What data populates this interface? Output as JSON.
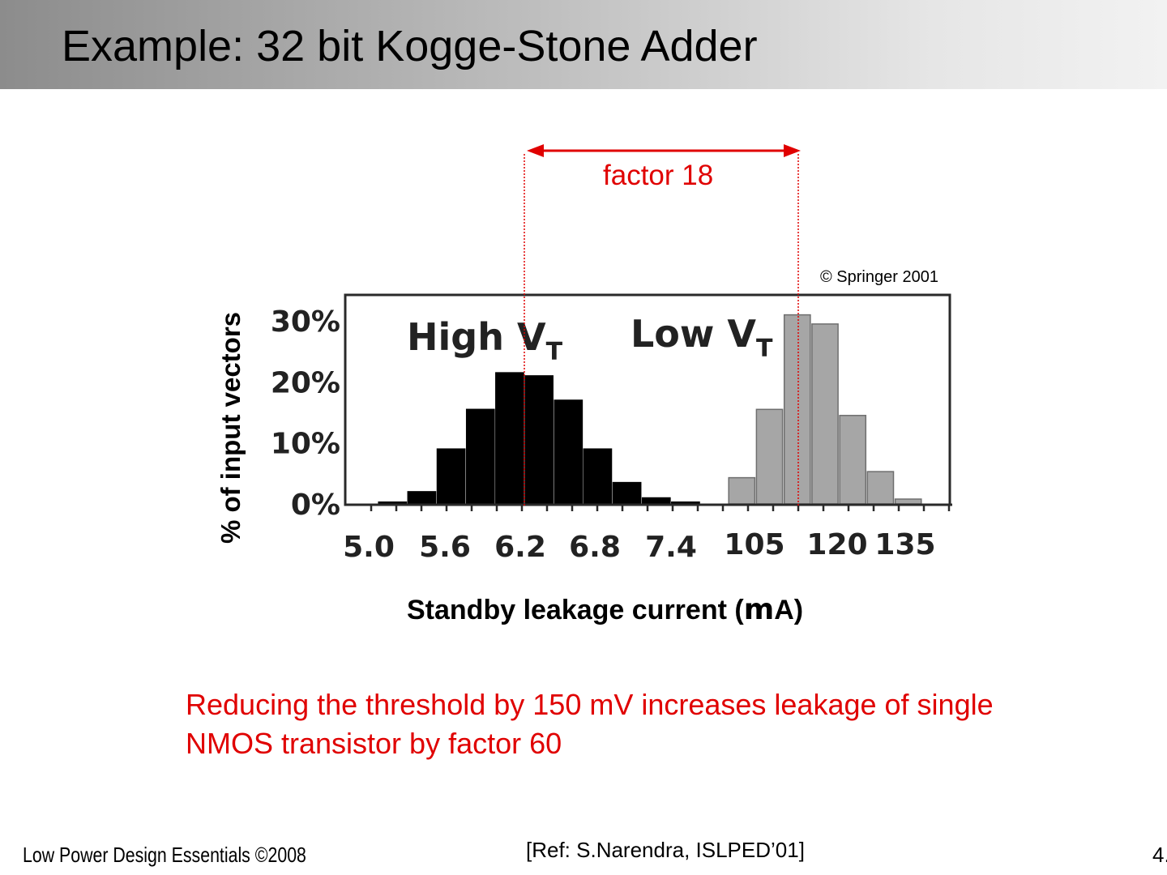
{
  "slide": {
    "title": "Example: 32 bit Kogge-Stone Adder",
    "factor_label": "factor 18",
    "copyright": "© Springer 2001",
    "note": "Reducing the threshold by 150 mV increases leakage of single NMOS transistor by factor 60",
    "footer_left": "Low Power Design Essentials ©2008",
    "footer_ref": "[Ref: S.Narendra, ISLPED’01]",
    "footer_page": "4.",
    "accent_color": "#e00000"
  },
  "chart_data": {
    "type": "bar",
    "title": "",
    "xlabel_prefix": "Standby leakage current (",
    "xlabel_unit": "m",
    "xlabel_suffix": "A)",
    "ylabel": "% of input vectors",
    "y_ticks": [
      "30%",
      "20%",
      "10%",
      "0%"
    ],
    "ylim": [
      0,
      34
    ],
    "high_vt": {
      "label": "High V",
      "label_sub": "T",
      "color": "#000000",
      "tick_labels": [
        "5.0",
        "5.6",
        "6.2",
        "6.8",
        "7.4"
      ],
      "values": [
        0,
        0.3,
        2,
        9,
        15.5,
        21.5,
        21,
        17,
        9,
        3.5,
        1,
        0.3
      ]
    },
    "low_vt": {
      "label": "Low V",
      "label_sub": "T",
      "color": "#a6a6a6",
      "tick_labels": [
        "105",
        "120",
        "135"
      ],
      "values": [
        0,
        4.3,
        15.5,
        31,
        29.5,
        14.5,
        5.3,
        0.8,
        0
      ]
    },
    "grid": false,
    "legend": "none"
  }
}
